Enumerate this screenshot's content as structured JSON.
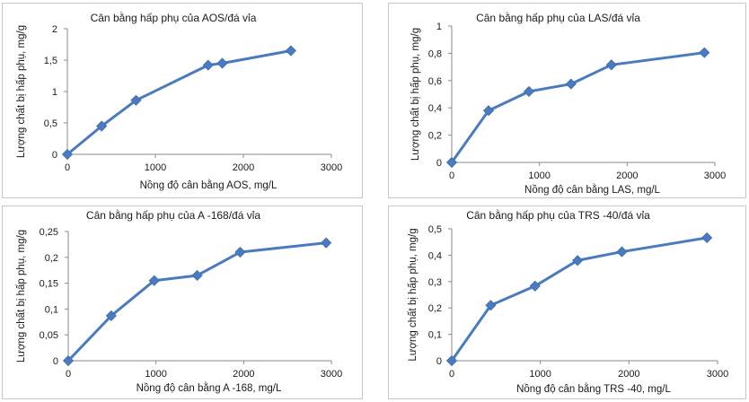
{
  "chart_data": [
    {
      "type": "line",
      "title": "Cân bằng hấp phụ của AOS/đá vỉa",
      "xlabel": "Nồng độ cân bằng AOS, mg/L",
      "ylabel": "Lượng chất bị hấp phụ, mg/g",
      "xlim": [
        0,
        3000
      ],
      "ylim": [
        0,
        2
      ],
      "xticks": [
        "0",
        "1000",
        "2000",
        "3000"
      ],
      "yticks": [
        "0",
        "0,5",
        "1",
        "1,5",
        "2"
      ],
      "x": [
        0,
        390,
        780,
        1600,
        1760,
        2540
      ],
      "y": [
        0,
        0.45,
        0.86,
        1.42,
        1.45,
        1.65
      ],
      "color": "#4a7abf",
      "marker": "diamond",
      "grid": false
    },
    {
      "type": "line",
      "title": "Cân bằng hấp phụ của LAS/đá vỉa",
      "xlabel": "Nồng độ cân bằng LAS, mg/L",
      "ylabel": "Lượng chất bị hấp phụ, mg/g",
      "xlim": [
        0,
        3000
      ],
      "ylim": [
        0,
        1
      ],
      "xticks": [
        "0",
        "1000",
        "2000",
        "3000"
      ],
      "yticks": [
        "0",
        "0,2",
        "0,4",
        "0,6",
        "0,8",
        "1"
      ],
      "x": [
        0,
        420,
        880,
        1360,
        1820,
        2880
      ],
      "y": [
        0,
        0.38,
        0.52,
        0.575,
        0.715,
        0.805
      ],
      "color": "#4a7abf",
      "marker": "diamond",
      "grid": false
    },
    {
      "type": "line",
      "title": "Cân bằng hấp phụ của A -168/đá vỉa",
      "xlabel": "Nồng độ cân bằng A -168, mg/L",
      "ylabel": "Lượng chất bị hấp phụ, mg/g",
      "xlim": [
        0,
        3000
      ],
      "ylim": [
        0,
        0.25
      ],
      "xticks": [
        "0",
        "1000",
        "2000",
        "3000"
      ],
      "yticks": [
        "0",
        "0,05",
        "0,1",
        "0,15",
        "0,2",
        "0,25"
      ],
      "x": [
        0,
        490,
        980,
        1470,
        1960,
        2940
      ],
      "y": [
        0,
        0.087,
        0.155,
        0.165,
        0.21,
        0.228
      ],
      "color": "#4a7abf",
      "marker": "diamond",
      "grid": false
    },
    {
      "type": "line",
      "title": "Cân bằng hấp phụ của TRS -40/đá vỉa",
      "xlabel": "Nồng độ cân bằng TRS -40, mg/L",
      "ylabel": "Lượng chất bị hấp phụ, mg/g",
      "xlim": [
        0,
        3000
      ],
      "ylim": [
        0,
        0.5
      ],
      "xticks": [
        "0",
        "1000",
        "2000",
        "3000"
      ],
      "yticks": [
        "0",
        "0,1",
        "0,2",
        "0,3",
        "0,4",
        "0,5"
      ],
      "x": [
        0,
        440,
        940,
        1420,
        1920,
        2880
      ],
      "y": [
        0,
        0.21,
        0.283,
        0.38,
        0.413,
        0.466
      ],
      "color": "#4a7abf",
      "marker": "diamond",
      "grid": false
    }
  ]
}
